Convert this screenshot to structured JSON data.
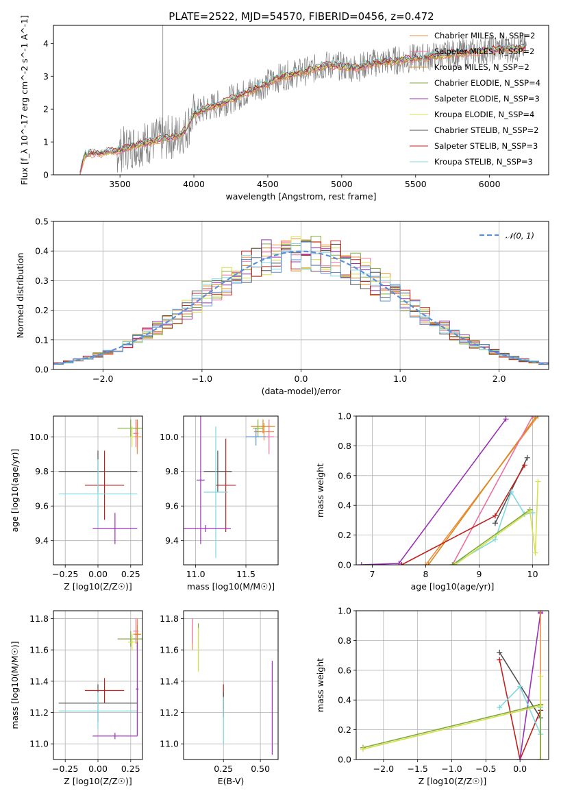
{
  "figure": {
    "title": "PLATE=2522, MJD=54570, FIBERID=0456, z=0.472"
  },
  "colors": {
    "chabrier_miles": "#f08c3c",
    "salpeter_miles": "#ee6f9f",
    "kroupa_miles": "#d98a1e",
    "chabrier_elodie": "#7faa3a",
    "salpeter_elodie": "#9b30b8",
    "kroupa_elodie": "#d6e04a",
    "chabrier_stelib": "#505050",
    "salpeter_stelib": "#c0201c",
    "kroupa_stelib": "#7fd8e0",
    "data": "#808080",
    "gaussian": "#5b8fd6"
  },
  "chart_data": [
    {
      "id": "spectrum",
      "type": "line",
      "title": "PLATE=2522, MJD=54570, FIBERID=0456, z=0.472",
      "xlabel": "wavelength [Angstrom, rest frame]",
      "ylabel": "Flux [f_λ 10^-17 erg cm^-2 s^-1 A^-1]",
      "xlim": [
        3050,
        6400
      ],
      "ylim": [
        0,
        4.55
      ],
      "xticks": [
        3500,
        4000,
        4500,
        5000,
        5500,
        6000
      ],
      "yticks": [
        0,
        1,
        2,
        3,
        4
      ],
      "legend_position": "right",
      "legend": [
        "Chabrier MILES, N_SSP=2",
        "Salpeter MILES, N_SSP=2",
        "Kroupa MILES, N_SSP=2",
        "Chabrier ELODIE, N_SSP=4",
        "Salpeter ELODIE, N_SSP=3",
        "Kroupa ELODIE, N_SSP=4",
        "Chabrier STELIB, N_SSP=2",
        "Salpeter STELIB, N_SSP=3",
        "Kroupa STELIB, N_SSP=3"
      ],
      "legend_colors": [
        "#f08c3c",
        "#ee6f9f",
        "#d98a1e",
        "#7faa3a",
        "#9b30b8",
        "#d6e04a",
        "#505050",
        "#c0201c",
        "#7fd8e0"
      ],
      "continuum": {
        "x": [
          3230,
          3260,
          3300,
          3400,
          3500,
          3600,
          3700,
          3800,
          3900,
          3950,
          4000,
          4100,
          4200,
          4300,
          4400,
          4500,
          4600,
          4700,
          4800,
          4900,
          5000,
          5100,
          5200,
          5300,
          5400,
          5500,
          5600,
          5700,
          5800,
          5900,
          6000,
          6100,
          6200,
          6300
        ],
        "y": [
          0.05,
          0.6,
          0.65,
          0.68,
          0.75,
          0.9,
          1.0,
          1.1,
          1.2,
          1.4,
          1.85,
          2.05,
          2.2,
          2.4,
          2.6,
          2.8,
          3.0,
          3.1,
          3.2,
          3.35,
          3.3,
          3.25,
          3.4,
          3.45,
          3.5,
          3.55,
          3.6,
          3.65,
          3.7,
          3.75,
          3.8,
          3.85,
          3.85,
          3.9
        ]
      },
      "data_xrange": [
        3240,
        6250
      ],
      "spike": {
        "x": 3790,
        "y": 4.55
      }
    },
    {
      "id": "residuals",
      "type": "line",
      "xlabel": "(data-model)/error",
      "ylabel": "Normed distribution",
      "xlim": [
        -2.5,
        2.5
      ],
      "ylim": [
        0,
        0.5
      ],
      "xticks": [
        -2,
        -1,
        0,
        1,
        2
      ],
      "yticks": [
        0.0,
        0.1,
        0.2,
        0.3,
        0.4,
        0.5
      ],
      "legend_position": "upper right",
      "legend": [
        "𝒩(0, 1)"
      ],
      "bin_width": 0.1,
      "series_colors": [
        "#f08c3c",
        "#ee6f9f",
        "#d98a1e",
        "#7faa3a",
        "#9b30b8",
        "#d6e04a",
        "#505050",
        "#c0201c",
        "#7fd8e0",
        "#5b8fd6"
      ]
    },
    {
      "id": "age_vs_Z",
      "type": "scatter",
      "xlabel": "Z [log10(Z/Z☉)]",
      "ylabel": "age [log10(age/yr)]",
      "xlim": [
        -0.34,
        0.34
      ],
      "ylim": [
        9.26,
        10.12
      ],
      "xticks": [
        -0.25,
        0.0,
        0.25
      ],
      "yticks": [
        9.4,
        9.6,
        9.8,
        10.0
      ],
      "points": [
        {
          "x": 0.3,
          "y": 10.0,
          "xerr": 0.03,
          "yerr": 0.1,
          "color": "#f08c3c"
        },
        {
          "x": 0.29,
          "y": 10.02,
          "xerr": 0.02,
          "yerr": 0.08,
          "color": "#ee6f9f"
        },
        {
          "x": 0.3,
          "y": 10.05,
          "xerr": 0.02,
          "yerr": 0.05,
          "color": "#d98a1e"
        },
        {
          "x": 0.25,
          "y": 10.05,
          "xerr": 0.1,
          "yerr": 0.05,
          "color": "#7faa3a"
        },
        {
          "x": 0.26,
          "y": 10.0,
          "xerr": 0.02,
          "yerr": 0.06,
          "color": "#d6e04a"
        },
        {
          "x": 0.0,
          "y": 9.8,
          "xerr": 0.3,
          "yerr": 0.12,
          "color": "#505050"
        },
        {
          "x": 0.05,
          "y": 9.72,
          "xerr": 0.15,
          "yerr": 0.2,
          "color": "#c0201c"
        },
        {
          "x": 0.0,
          "y": 9.67,
          "xerr": 0.3,
          "yerr": 0.2,
          "color": "#7fd8e0"
        },
        {
          "x": 0.13,
          "y": 9.47,
          "xerr": 0.17,
          "yerr": 0.09,
          "color": "#9b30b8"
        }
      ]
    },
    {
      "id": "age_vs_mass",
      "type": "scatter",
      "xlabel": "mass [log10(M/M☉)]",
      "ylabel": "",
      "xlim": [
        10.88,
        11.82
      ],
      "ylim": [
        9.26,
        10.12
      ],
      "xticks": [
        11.0,
        11.5
      ],
      "yticks": [
        9.4,
        9.6,
        9.8,
        10.0
      ],
      "points": [
        {
          "x": 11.68,
          "y": 10.03,
          "xerr": 0.1,
          "yerr": 0.05,
          "color": "#f08c3c"
        },
        {
          "x": 11.73,
          "y": 10.0,
          "xerr": 0.05,
          "yerr": 0.1,
          "color": "#ee6f9f"
        },
        {
          "x": 11.67,
          "y": 10.06,
          "xerr": 0.12,
          "yerr": 0.04,
          "color": "#d98a1e"
        },
        {
          "x": 11.62,
          "y": 10.05,
          "xerr": 0.05,
          "yerr": 0.05,
          "color": "#7faa3a"
        },
        {
          "x": 11.6,
          "y": 10.0,
          "xerr": 0.1,
          "yerr": 0.05,
          "color": "#5b8fd6"
        },
        {
          "x": 11.22,
          "y": 9.8,
          "xerr": 0.14,
          "yerr": 0.12,
          "color": "#505050"
        },
        {
          "x": 11.3,
          "y": 9.72,
          "xerr": 0.1,
          "yerr": 0.27,
          "color": "#c0201c"
        },
        {
          "x": 11.2,
          "y": 9.68,
          "xerr": 0.12,
          "yerr": 0.38,
          "color": "#7fd8e0"
        },
        {
          "x": 11.05,
          "y": 9.75,
          "xerr": 0.04,
          "yerr": 0.37,
          "color": "#9b30b8"
        },
        {
          "x": 11.1,
          "y": 9.47,
          "xerr": 0.25,
          "yerr": 0.02,
          "color": "#9b30b8"
        }
      ]
    },
    {
      "id": "massweight_vs_age",
      "type": "line",
      "xlabel": "age [log10(age/yr)]",
      "ylabel": "mass weight",
      "xlim": [
        6.7,
        10.3
      ],
      "ylim": [
        0,
        1
      ],
      "xticks": [
        7,
        8,
        9,
        10
      ],
      "yticks": [
        0.0,
        0.2,
        0.4,
        0.6,
        0.8,
        1.0
      ],
      "series": [
        {
          "color": "#9b30b8",
          "x": [
            6.8,
            7.5,
            9.5
          ],
          "y": [
            0.0,
            0.01,
            0.98
          ]
        },
        {
          "color": "#f08c3c",
          "x": [
            8.0,
            10.1
          ],
          "y": [
            0.0,
            1.0
          ]
        },
        {
          "color": "#d98a1e",
          "x": [
            8.05,
            10.05
          ],
          "y": [
            0.0,
            0.99
          ]
        },
        {
          "color": "#ee6f9f",
          "x": [
            8.5,
            10.0
          ],
          "y": [
            0.0,
            1.0
          ]
        },
        {
          "color": "#505050",
          "x": [
            9.3,
            9.9
          ],
          "y": [
            0.28,
            0.72
          ]
        },
        {
          "color": "#c0201c",
          "x": [
            7.55,
            9.3,
            9.85
          ],
          "y": [
            0.0,
            0.33,
            0.67
          ]
        },
        {
          "color": "#7fd8e0",
          "x": [
            8.5,
            9.3,
            9.6,
            9.85,
            10.0
          ],
          "y": [
            0.0,
            0.17,
            0.49,
            0.34,
            0.35
          ]
        },
        {
          "color": "#7faa3a",
          "x": [
            8.5,
            9.95
          ],
          "y": [
            0.0,
            0.37
          ]
        },
        {
          "color": "#d6e04a",
          "x": [
            8.55,
            9.95,
            10.05,
            10.1
          ],
          "y": [
            0.0,
            0.36,
            0.08,
            0.56
          ]
        }
      ]
    },
    {
      "id": "mass_vs_Z",
      "type": "scatter",
      "xlabel": "Z [log10(Z/Z☉)]",
      "ylabel": "mass [log10(M/M☉)]",
      "xlim": [
        -0.34,
        0.34
      ],
      "ylim": [
        10.9,
        11.85
      ],
      "xticks": [
        -0.25,
        0.0,
        0.25
      ],
      "yticks": [
        11.0,
        11.2,
        11.4,
        11.6,
        11.8
      ],
      "points": [
        {
          "x": 0.3,
          "y": 11.7,
          "xerr": 0.03,
          "yerr": 0.1,
          "color": "#f08c3c"
        },
        {
          "x": 0.29,
          "y": 11.72,
          "xerr": 0.02,
          "yerr": 0.08,
          "color": "#ee6f9f"
        },
        {
          "x": 0.3,
          "y": 11.7,
          "xerr": 0.02,
          "yerr": 0.06,
          "color": "#d98a1e"
        },
        {
          "x": 0.25,
          "y": 11.67,
          "xerr": 0.1,
          "yerr": 0.05,
          "color": "#7faa3a"
        },
        {
          "x": 0.26,
          "y": 11.65,
          "xerr": 0.03,
          "yerr": 0.05,
          "color": "#d6e04a"
        },
        {
          "x": 0.0,
          "y": 11.26,
          "xerr": 0.3,
          "yerr": 0.12,
          "color": "#505050"
        },
        {
          "x": 0.05,
          "y": 11.34,
          "xerr": 0.15,
          "yerr": 0.08,
          "color": "#c0201c"
        },
        {
          "x": 0.0,
          "y": 11.21,
          "xerr": 0.3,
          "yerr": 0.12,
          "color": "#7fd8e0"
        },
        {
          "x": 0.13,
          "y": 11.05,
          "xerr": 0.17,
          "yerr": 0.02,
          "color": "#9b30b8"
        },
        {
          "x": 0.3,
          "y": 11.35,
          "xerr": 0.01,
          "yerr": 0.3,
          "color": "#9b30b8"
        }
      ]
    },
    {
      "id": "mass_vs_EBV",
      "type": "scatter",
      "xlabel": "E(B-V)",
      "ylabel": "",
      "xlim": [
        -0.02,
        0.62
      ],
      "ylim": [
        10.9,
        11.85
      ],
      "xticks": [
        0.25,
        0.5
      ],
      "yticks": [
        11.0,
        11.2,
        11.4,
        11.6,
        11.8
      ],
      "points": [
        {
          "x": 0.04,
          "y": 11.7,
          "xerr": 0.0,
          "yerr": 0.1,
          "color": "#f08c3c"
        },
        {
          "x": 0.04,
          "y": 11.72,
          "xerr": 0.0,
          "yerr": 0.08,
          "color": "#ee6f9f"
        },
        {
          "x": 0.08,
          "y": 11.62,
          "xerr": 0.0,
          "yerr": 0.15,
          "color": "#7faa3a"
        },
        {
          "x": 0.08,
          "y": 11.6,
          "xerr": 0.0,
          "yerr": 0.14,
          "color": "#d6e04a"
        },
        {
          "x": 0.25,
          "y": 11.3,
          "xerr": 0.0,
          "yerr": 0.08,
          "color": "#c0201c"
        },
        {
          "x": 0.25,
          "y": 11.25,
          "xerr": 0.0,
          "yerr": 0.08,
          "color": "#505050"
        },
        {
          "x": 0.25,
          "y": 11.15,
          "xerr": 0.0,
          "yerr": 0.15,
          "color": "#7fd8e0"
        },
        {
          "x": 0.58,
          "y": 11.23,
          "xerr": 0.0,
          "yerr": 0.3,
          "color": "#9b30b8"
        }
      ]
    },
    {
      "id": "massweight_vs_Z",
      "type": "line",
      "xlabel": "Z [log10(Z/Z☉)]",
      "ylabel": "mass weight",
      "xlim": [
        -2.4,
        0.42
      ],
      "ylim": [
        0,
        1
      ],
      "xticks": [
        -2.0,
        -1.5,
        -1.0,
        -0.5,
        0.0
      ],
      "yticks": [
        0.0,
        0.2,
        0.4,
        0.6,
        0.8,
        1.0
      ],
      "series": [
        {
          "color": "#505050",
          "x": [
            -0.3,
            0.3,
            0.3
          ],
          "y": [
            0.72,
            0.28,
            0.33
          ]
        },
        {
          "color": "#c0201c",
          "x": [
            -0.3,
            0.0,
            0.3
          ],
          "y": [
            0.67,
            0.0,
            0.33
          ]
        },
        {
          "color": "#9b30b8",
          "x": [
            0.0,
            0.3,
            0.3
          ],
          "y": [
            0.0,
            0.98,
            0.99
          ]
        },
        {
          "color": "#f08c3c",
          "x": [
            0.3,
            0.3
          ],
          "y": [
            0.0,
            1.0
          ]
        },
        {
          "color": "#7fd8e0",
          "x": [
            -0.3,
            0.0,
            0.3,
            0.3
          ],
          "y": [
            0.35,
            0.49,
            0.17,
            0.35
          ]
        },
        {
          "color": "#7faa3a",
          "x": [
            -2.3,
            0.3,
            0.3
          ],
          "y": [
            0.08,
            0.37,
            0.0
          ]
        },
        {
          "color": "#d6e04a",
          "x": [
            -2.3,
            0.3,
            0.3
          ],
          "y": [
            0.07,
            0.36,
            0.56
          ]
        }
      ]
    }
  ]
}
